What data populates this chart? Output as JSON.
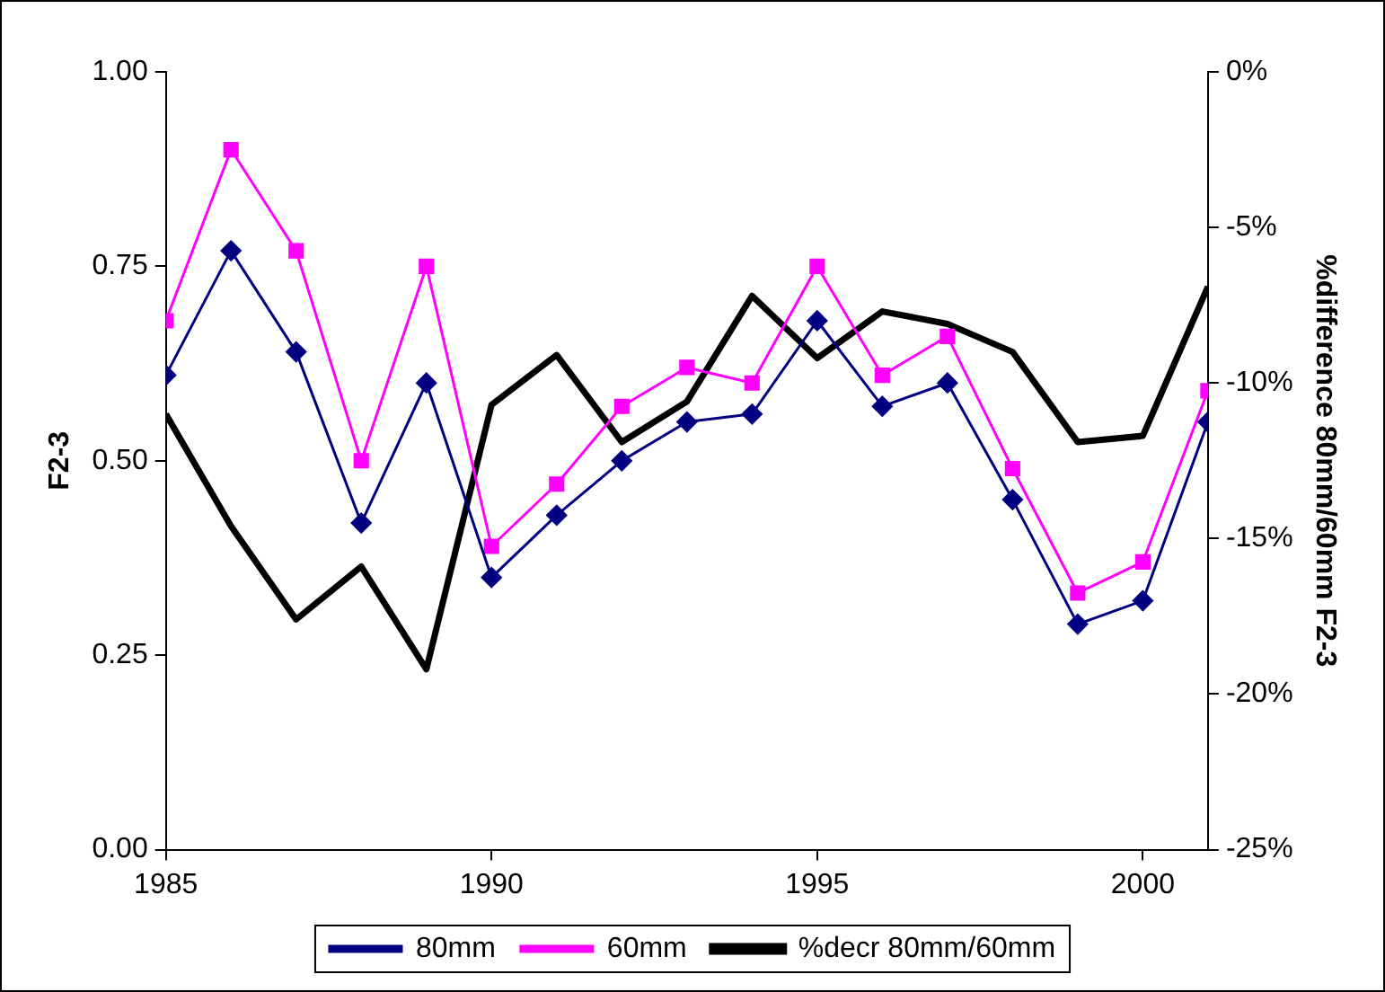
{
  "chart_data": {
    "type": "line",
    "ylabel": "F2-3",
    "y2label": "%difference 80mm/60mm F2-3",
    "x": [
      1985,
      1986,
      1987,
      1988,
      1989,
      1990,
      1991,
      1992,
      1993,
      1994,
      1995,
      1996,
      1997,
      1998,
      1999,
      2000,
      2001
    ],
    "xlim": [
      1985,
      2001
    ],
    "xticks": [
      1985,
      1990,
      1995,
      2000
    ],
    "ylim": [
      0,
      1
    ],
    "yticks": [
      {
        "value": 0,
        "label": "0.00"
      },
      {
        "value": 0.25,
        "label": "0.25"
      },
      {
        "value": 0.5,
        "label": "0.50"
      },
      {
        "value": 0.75,
        "label": "0.75"
      },
      {
        "value": 1,
        "label": "1.00"
      }
    ],
    "y2lim": [
      -25,
      0
    ],
    "y2ticks": [
      {
        "value": -25,
        "label": "-25%"
      },
      {
        "value": -20,
        "label": "-20%"
      },
      {
        "value": -15,
        "label": "-15%"
      },
      {
        "value": -10,
        "label": "-10%"
      },
      {
        "value": -5,
        "label": "-5%"
      },
      {
        "value": 0,
        "label": "0%"
      }
    ],
    "grid": false,
    "legend": "bottom",
    "series": [
      {
        "name": "80mm",
        "color": "#000080",
        "marker": "diamond",
        "values": [
          0.61,
          0.77,
          0.64,
          0.42,
          0.6,
          0.35,
          0.43,
          0.5,
          0.55,
          0.56,
          0.68,
          0.57,
          0.6,
          0.45,
          0.29,
          0.32,
          0.55
        ]
      },
      {
        "name": "60mm",
        "color": "#ff00ff",
        "marker": "square",
        "values": [
          0.68,
          0.9,
          0.77,
          0.5,
          0.75,
          0.39,
          0.47,
          0.57,
          0.62,
          0.6,
          0.75,
          0.61,
          0.66,
          0.49,
          0.33,
          0.37,
          0.59
        ]
      },
      {
        "name": "%decr 80mm/60mm",
        "color": "#000000",
        "marker": "none",
        "axis": "y2",
        "values": [
          -11.0,
          -14.6,
          -17.6,
          -15.9,
          -19.2,
          -10.7,
          -9.1,
          -11.9,
          -10.6,
          -7.2,
          -9.2,
          -7.7,
          -8.1,
          -9.0,
          -11.9,
          -11.7,
          -6.9
        ]
      }
    ]
  }
}
